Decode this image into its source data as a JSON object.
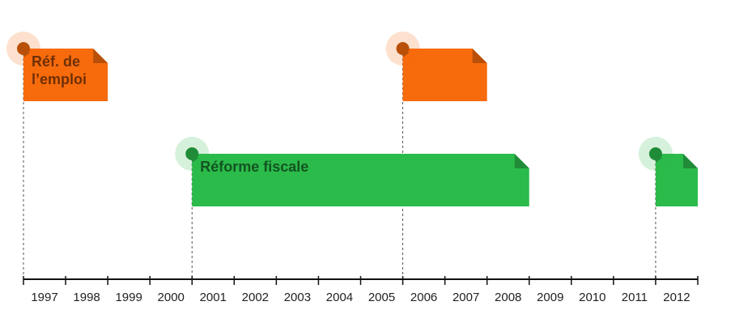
{
  "chart_data": {
    "type": "timeline",
    "categories": [
      "1997",
      "1998",
      "1999",
      "2000",
      "2001",
      "2002",
      "2003",
      "2004",
      "2005",
      "2006",
      "2007",
      "2008",
      "2009",
      "2010",
      "2011",
      "2012"
    ],
    "xlim": [
      1997,
      2013
    ],
    "series": [
      {
        "color": "#f76b0c",
        "events": [
          {
            "label": "Réf. de l’emploi",
            "start": 1997,
            "end": 1999
          },
          {
            "label": null,
            "start": 2006,
            "end": 2008
          }
        ]
      },
      {
        "color": "#2bbb4a",
        "events": [
          {
            "label": "Réforme fiscale",
            "start": 2001,
            "end": 2009
          },
          {
            "label": null,
            "start": 2012,
            "end": 2013
          }
        ]
      }
    ]
  }
}
